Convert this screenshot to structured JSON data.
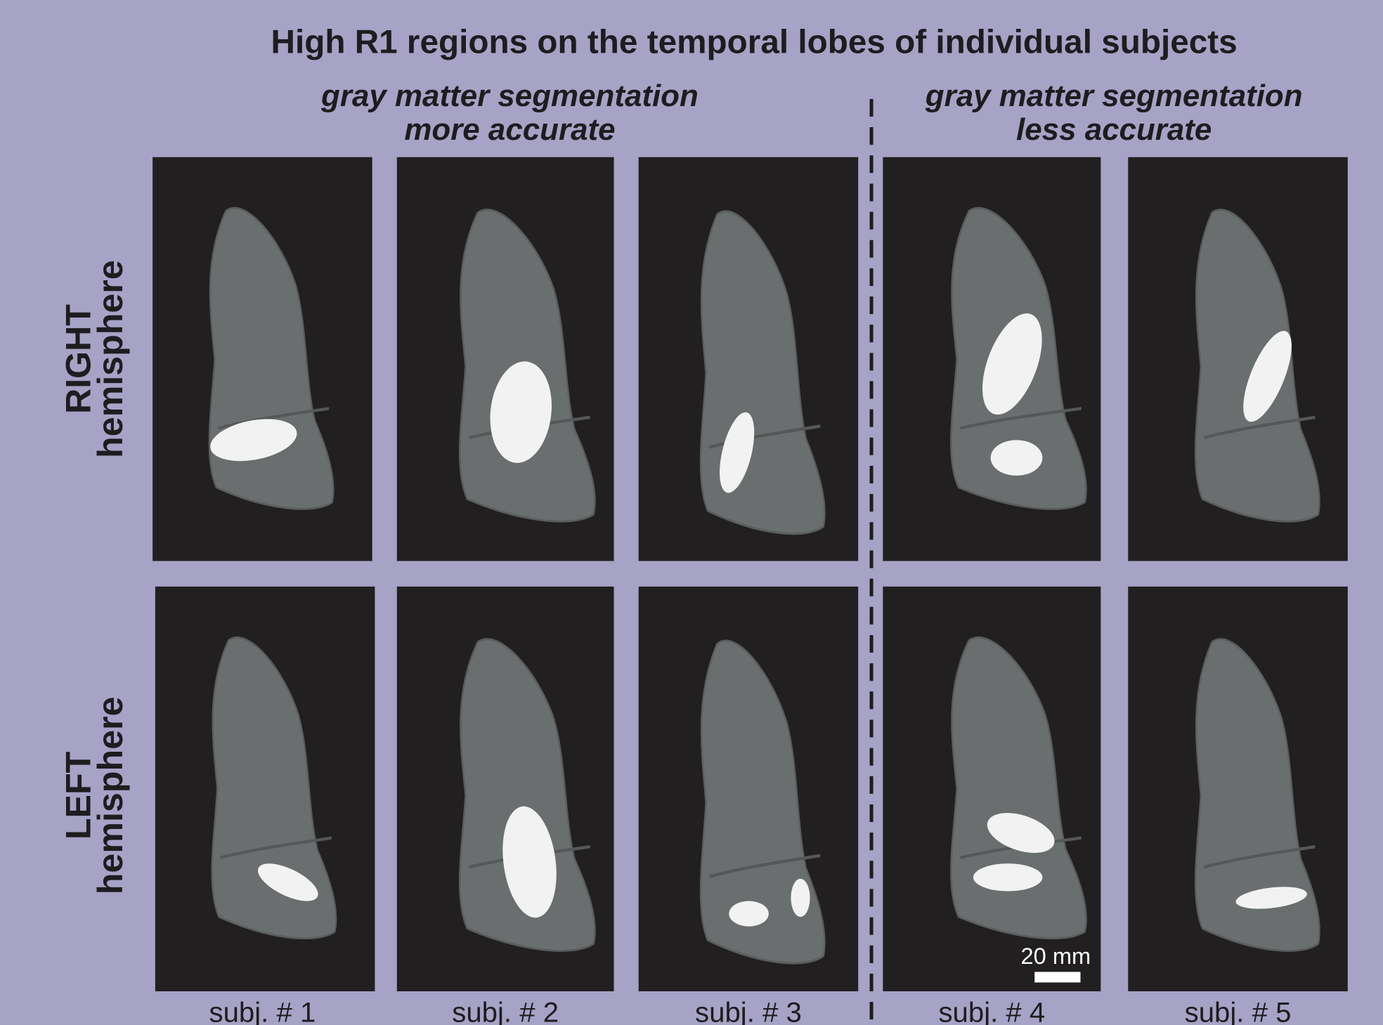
{
  "title": "High R1 regions on the temporal lobes of individual subjects",
  "groups": [
    {
      "lines": [
        "gray matter segmentation",
        "more accurate"
      ]
    },
    {
      "lines": [
        "gray matter segmentation",
        "less accurate"
      ]
    }
  ],
  "rows": [
    {
      "lines": [
        "RIGHT",
        "hemisphere"
      ]
    },
    {
      "lines": [
        "LEFT",
        "hemisphere"
      ]
    }
  ],
  "subjects": [
    "subj. # 1",
    "subj. # 2",
    "subj. # 3",
    "subj. # 4",
    "subj. # 5"
  ],
  "scale_bar": "20 mm"
}
